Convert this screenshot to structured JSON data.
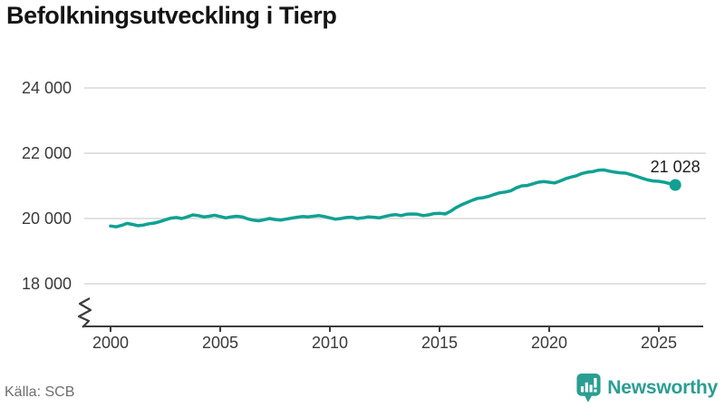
{
  "header": {
    "title": "Befolkningsutveckling i Tierp"
  },
  "footer": {
    "source": "Källa: SCB",
    "brand": "Newsworthy"
  },
  "colors": {
    "line": "#10A193",
    "grid": "#E2E2E2",
    "axis": "#3C3C3C",
    "tick_text": "#3A3A3A",
    "title_text": "#141414",
    "muted_text": "#6F6F6F",
    "brand": "#2A9E92",
    "end_label_text": "#1C1C1C"
  },
  "chart_data": {
    "type": "line",
    "title": "Befolkningsutveckling i Tierp",
    "source": "Källa: SCB",
    "xlabel": "",
    "ylabel": "",
    "x_ticks": [
      2000,
      2005,
      2010,
      2015,
      2020,
      2025
    ],
    "y_ticks": [
      18000,
      20000,
      22000,
      24000
    ],
    "y_tick_labels": [
      "18 000",
      "20 000",
      "22 000",
      "24 000"
    ],
    "grid": "horizontal",
    "legend": "none",
    "axis_break": true,
    "end_point_label": "21 028",
    "series": [
      {
        "name": "Befolkning i Tierp",
        "points": [
          [
            2000.0,
            19770
          ],
          [
            2000.25,
            19745
          ],
          [
            2000.5,
            19790
          ],
          [
            2000.75,
            19850
          ],
          [
            2001.0,
            19820
          ],
          [
            2001.25,
            19780
          ],
          [
            2001.5,
            19800
          ],
          [
            2001.75,
            19840
          ],
          [
            2002.0,
            19860
          ],
          [
            2002.25,
            19905
          ],
          [
            2002.5,
            19960
          ],
          [
            2002.75,
            20010
          ],
          [
            2003.0,
            20030
          ],
          [
            2003.25,
            20000
          ],
          [
            2003.5,
            20050
          ],
          [
            2003.75,
            20110
          ],
          [
            2004.0,
            20090
          ],
          [
            2004.25,
            20050
          ],
          [
            2004.5,
            20070
          ],
          [
            2004.75,
            20100
          ],
          [
            2005.0,
            20060
          ],
          [
            2005.25,
            20020
          ],
          [
            2005.5,
            20050
          ],
          [
            2005.75,
            20070
          ],
          [
            2006.0,
            20050
          ],
          [
            2006.25,
            19990
          ],
          [
            2006.5,
            19950
          ],
          [
            2006.75,
            19930
          ],
          [
            2007.0,
            19960
          ],
          [
            2007.25,
            20000
          ],
          [
            2007.5,
            19970
          ],
          [
            2007.75,
            19950
          ],
          [
            2008.0,
            19980
          ],
          [
            2008.25,
            20010
          ],
          [
            2008.5,
            20040
          ],
          [
            2008.75,
            20060
          ],
          [
            2009.0,
            20050
          ],
          [
            2009.25,
            20070
          ],
          [
            2009.5,
            20090
          ],
          [
            2009.75,
            20060
          ],
          [
            2010.0,
            20020
          ],
          [
            2010.25,
            19980
          ],
          [
            2010.5,
            20000
          ],
          [
            2010.75,
            20030
          ],
          [
            2011.0,
            20040
          ],
          [
            2011.25,
            20000
          ],
          [
            2011.5,
            20020
          ],
          [
            2011.75,
            20050
          ],
          [
            2012.0,
            20040
          ],
          [
            2012.25,
            20020
          ],
          [
            2012.5,
            20060
          ],
          [
            2012.75,
            20100
          ],
          [
            2013.0,
            20120
          ],
          [
            2013.25,
            20090
          ],
          [
            2013.5,
            20130
          ],
          [
            2013.75,
            20140
          ],
          [
            2014.0,
            20130
          ],
          [
            2014.25,
            20090
          ],
          [
            2014.5,
            20110
          ],
          [
            2014.75,
            20150
          ],
          [
            2015.0,
            20160
          ],
          [
            2015.25,
            20140
          ],
          [
            2015.5,
            20220
          ],
          [
            2015.75,
            20330
          ],
          [
            2016.0,
            20420
          ],
          [
            2016.25,
            20490
          ],
          [
            2016.5,
            20560
          ],
          [
            2016.75,
            20620
          ],
          [
            2017.0,
            20640
          ],
          [
            2017.25,
            20680
          ],
          [
            2017.5,
            20740
          ],
          [
            2017.75,
            20790
          ],
          [
            2018.0,
            20810
          ],
          [
            2018.25,
            20850
          ],
          [
            2018.5,
            20940
          ],
          [
            2018.75,
            21000
          ],
          [
            2019.0,
            21010
          ],
          [
            2019.25,
            21060
          ],
          [
            2019.5,
            21110
          ],
          [
            2019.75,
            21130
          ],
          [
            2020.0,
            21110
          ],
          [
            2020.25,
            21090
          ],
          [
            2020.5,
            21150
          ],
          [
            2020.75,
            21220
          ],
          [
            2021.0,
            21270
          ],
          [
            2021.25,
            21310
          ],
          [
            2021.5,
            21380
          ],
          [
            2021.75,
            21420
          ],
          [
            2022.0,
            21440
          ],
          [
            2022.25,
            21480
          ],
          [
            2022.5,
            21490
          ],
          [
            2022.75,
            21450
          ],
          [
            2023.0,
            21420
          ],
          [
            2023.25,
            21400
          ],
          [
            2023.5,
            21390
          ],
          [
            2023.75,
            21340
          ],
          [
            2024.0,
            21290
          ],
          [
            2024.25,
            21230
          ],
          [
            2024.5,
            21180
          ],
          [
            2024.75,
            21150
          ],
          [
            2025.0,
            21140
          ],
          [
            2025.25,
            21110
          ],
          [
            2025.5,
            21070
          ],
          [
            2025.75,
            21028
          ]
        ]
      }
    ]
  }
}
